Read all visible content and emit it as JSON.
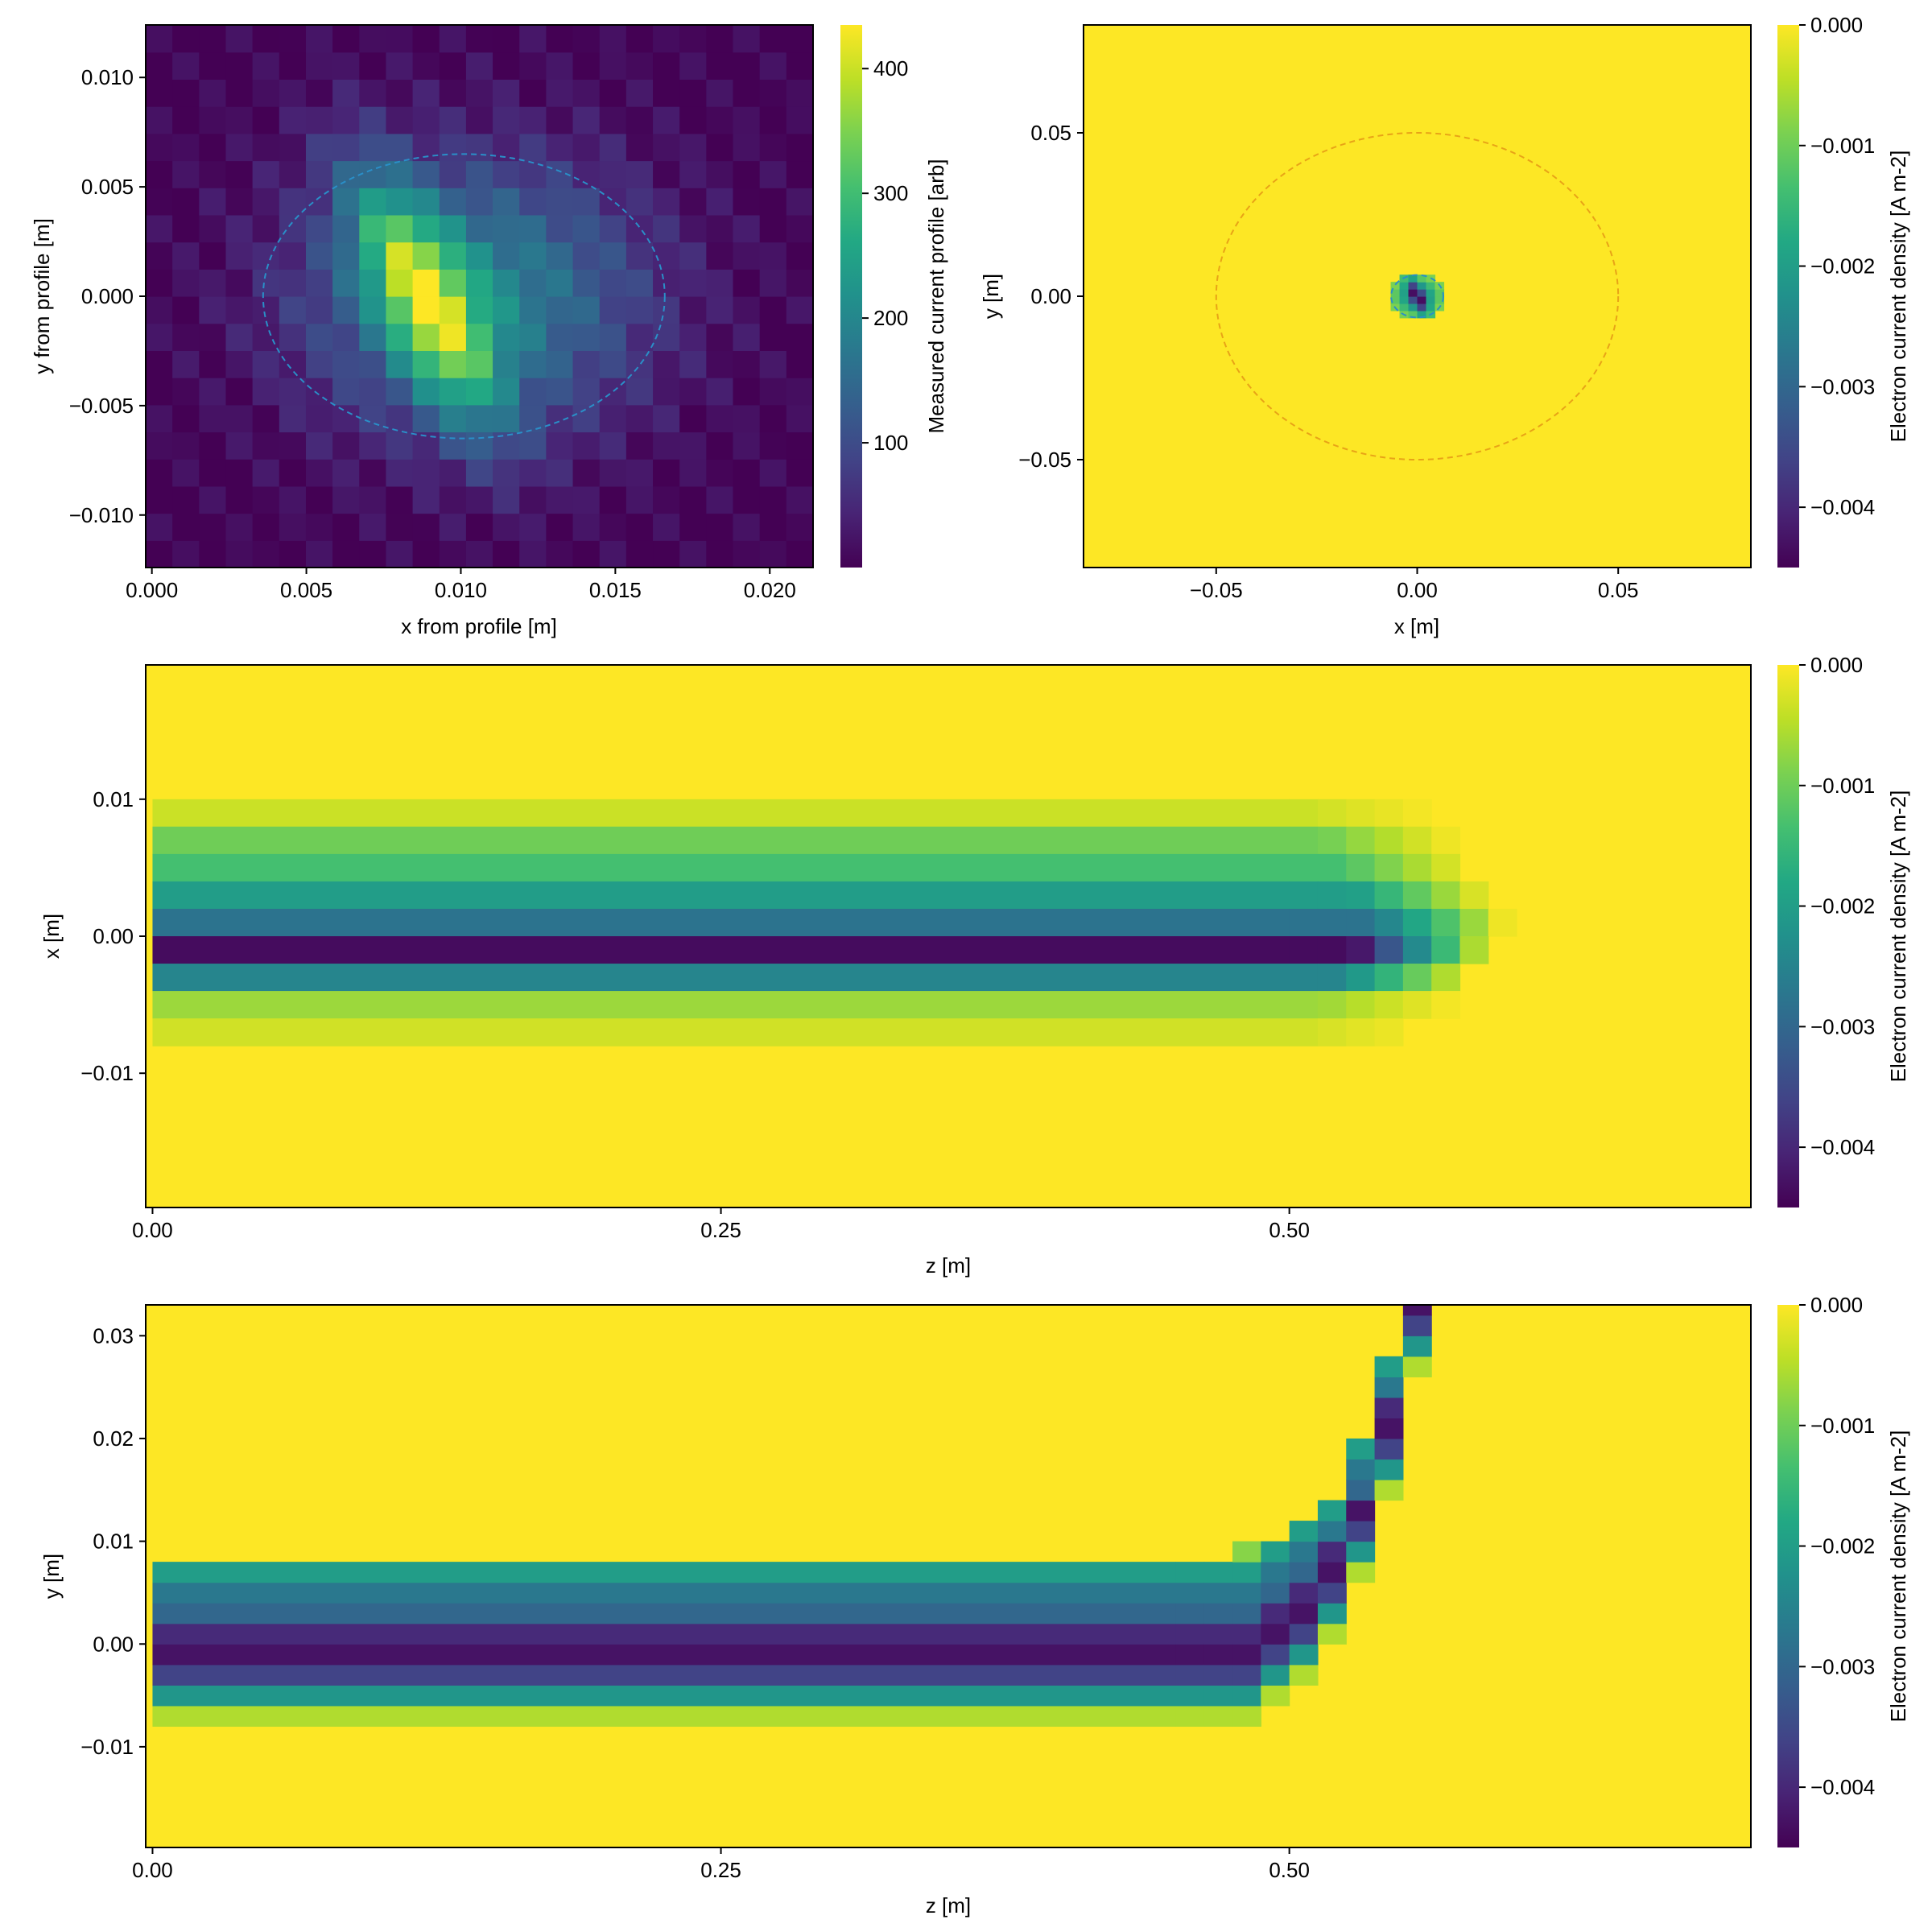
{
  "chart_data": [
    {
      "type": "heatmap",
      "xlabel": "x from profile [m]",
      "ylabel": "y from profile [m]",
      "xticks": [
        "0.000",
        "0.005",
        "0.010",
        "0.015",
        "0.020"
      ],
      "xtick_values": [
        0,
        0.005,
        0.01,
        0.015,
        0.02
      ],
      "yticks": [
        "0.010",
        "0.005",
        "0.000",
        "−0.005",
        "−0.010"
      ],
      "ytick_values": [
        0.01,
        0.005,
        0.0,
        -0.005,
        -0.01
      ],
      "xlim": [
        -0.0002,
        0.0214
      ],
      "ylim": [
        -0.0124,
        0.0124
      ],
      "colorbar": {
        "label": "Measured current profile [arb]",
        "ticks": [
          "400",
          "300",
          "200",
          "100"
        ],
        "tick_values": [
          400,
          300,
          200,
          100
        ],
        "range": [
          0,
          435
        ]
      },
      "overlay_ellipse": {
        "cx": 0.0101,
        "cy": 0.0,
        "rx": 0.0065,
        "ry": 0.0065,
        "style": "dashed",
        "color": "#2a8fc8"
      }
    },
    {
      "type": "heatmap",
      "xlabel": "x [m]",
      "ylabel": "y [m]",
      "xticks": [
        "−0.05",
        "0.00",
        "0.05"
      ],
      "xtick_values": [
        -0.05,
        0.0,
        0.05
      ],
      "yticks": [
        "0.05",
        "0.00",
        "−0.05"
      ],
      "ytick_values": [
        0.05,
        0.0,
        -0.05
      ],
      "xlim": [
        -0.083,
        0.083
      ],
      "ylim": [
        -0.083,
        0.083
      ],
      "colorbar": {
        "label": "Electron current density [A m-2]",
        "ticks": [
          "0.000",
          "−0.001",
          "−0.002",
          "−0.003",
          "−0.004"
        ],
        "tick_values": [
          0,
          -0.001,
          -0.002,
          -0.003,
          -0.004
        ],
        "range": [
          -0.0045,
          0
        ]
      },
      "overlay_circles": [
        {
          "cx": 0.0,
          "cy": 0.0,
          "r": 0.05,
          "style": "dashed",
          "color": "#e8a317"
        },
        {
          "cx": 0.0,
          "cy": 0.0,
          "r": 0.0065,
          "style": "dashed",
          "color": "#2a8fc8"
        }
      ]
    },
    {
      "type": "heatmap",
      "xlabel": "z [m]",
      "ylabel": "x [m]",
      "xticks": [
        "0.00",
        "0.25",
        "0.50"
      ],
      "xtick_values": [
        0,
        0.25,
        0.5
      ],
      "yticks": [
        "0.01",
        "0.00",
        "−0.01"
      ],
      "ytick_values": [
        0.01,
        0.0,
        -0.01
      ],
      "xlim": [
        -0.003,
        0.703
      ],
      "ylim": [
        -0.0198,
        0.0198
      ],
      "colorbar": {
        "label": "Electron current density [A m-2]",
        "ticks": [
          "0.000",
          "−0.001",
          "−0.002",
          "−0.003",
          "−0.004"
        ],
        "tick_values": [
          0,
          -0.001,
          -0.002,
          -0.003,
          -0.004
        ],
        "range": [
          -0.0045,
          0
        ]
      }
    },
    {
      "type": "heatmap",
      "xlabel": "z [m]",
      "ylabel": "y [m]",
      "xticks": [
        "0.00",
        "0.25",
        "0.50"
      ],
      "xtick_values": [
        0,
        0.25,
        0.5
      ],
      "yticks": [
        "0.03",
        "0.02",
        "0.01",
        "0.00",
        "−0.01"
      ],
      "ytick_values": [
        0.03,
        0.02,
        0.01,
        0.0,
        -0.01
      ],
      "xlim": [
        -0.003,
        0.703
      ],
      "ylim": [
        -0.0198,
        0.033
      ],
      "colorbar": {
        "label": "Electron current density [A m-2]",
        "ticks": [
          "0.000",
          "−0.001",
          "−0.002",
          "−0.003",
          "−0.004"
        ],
        "tick_values": [
          0,
          -0.001,
          -0.002,
          -0.003,
          -0.004
        ],
        "range": [
          -0.0045,
          0
        ]
      }
    }
  ]
}
